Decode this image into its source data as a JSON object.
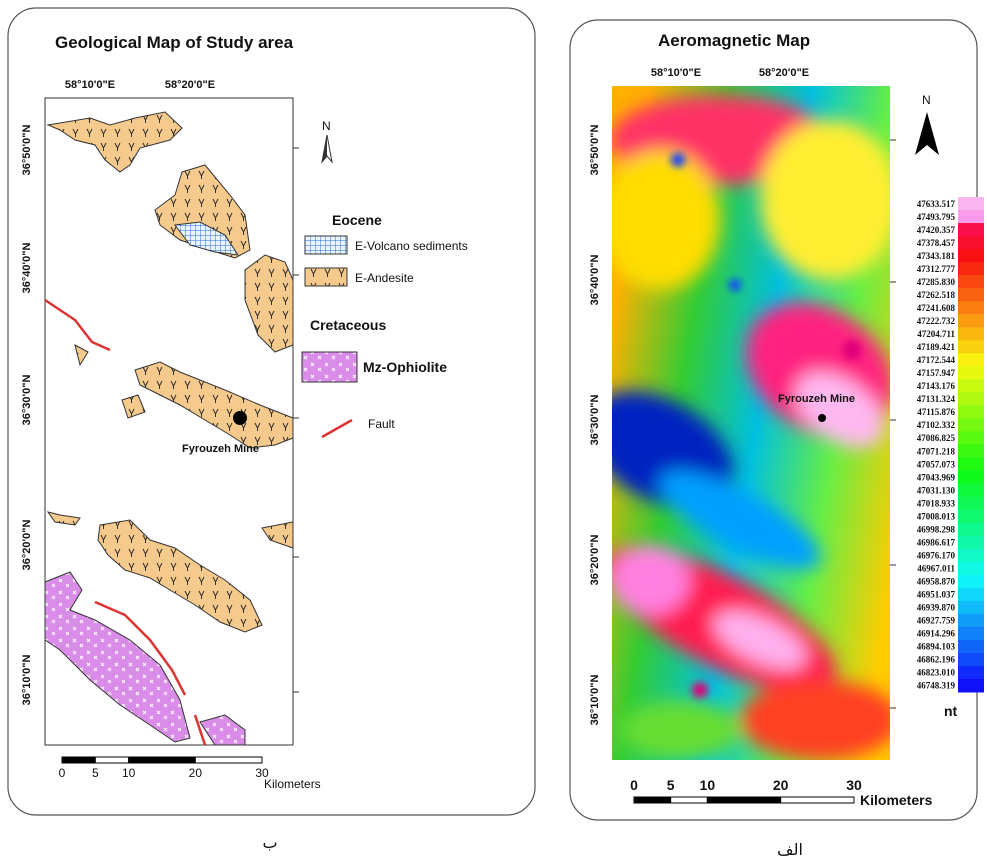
{
  "left_panel": {
    "title": "Geological Map of Study area",
    "longitude_labels": [
      "58°10'0\"E",
      "58°20'0\"E"
    ],
    "latitude_labels": [
      "36°50'0\"N",
      "36°40'0\"N",
      "36°30'0\"N",
      "36°20'0\"N",
      "36°10'0\"N"
    ],
    "north": "N",
    "legend": {
      "eocene": "Eocene",
      "volcano_sediments": "E-Volcano sediments",
      "andesite": "E-Andesite",
      "cretaceous": "Cretaceous",
      "ophiolite": "Mz-Ophiolite",
      "fault": "Fault"
    },
    "mine_label": "Fyrouzeh Mine",
    "scale": {
      "ticks": [
        0,
        5,
        10,
        20,
        30
      ],
      "unit": "Kilometers"
    },
    "caption": "ب"
  },
  "right_panel": {
    "title": "Aeromagnetic Map",
    "longitude_labels": [
      "58°10'0\"E",
      "58°20'0\"E"
    ],
    "latitude_labels": [
      "36°50'0\"N",
      "36°40'0\"N",
      "36°30'0\"N",
      "36°20'0\"N",
      "36°10'0\"N"
    ],
    "north": "N",
    "mine_label": "Fyrouzeh Mine",
    "colorbar": {
      "labels": [
        "47633.517",
        "47493.795",
        "47420.357",
        "47378.457",
        "47343.181",
        "47312.777",
        "47285.830",
        "47262.518",
        "47241.608",
        "47222.732",
        "47204.711",
        "47189.421",
        "47172.544",
        "47157.947",
        "47143.176",
        "47131.324",
        "47115.876",
        "47102.332",
        "47086.825",
        "47071.218",
        "47057.073",
        "47043.969",
        "47031.130",
        "47018.933",
        "47008.013",
        "46998.298",
        "46986.617",
        "46976.170",
        "46967.011",
        "46958.870",
        "46951.037",
        "46939.870",
        "46927.759",
        "46914.296",
        "46894.103",
        "46862.196",
        "46823.010",
        "46748.319"
      ],
      "unit": "nt"
    },
    "scale": {
      "ticks": [
        0,
        5,
        10,
        20,
        30
      ],
      "unit": "Kilometers"
    },
    "caption": "الف"
  }
}
